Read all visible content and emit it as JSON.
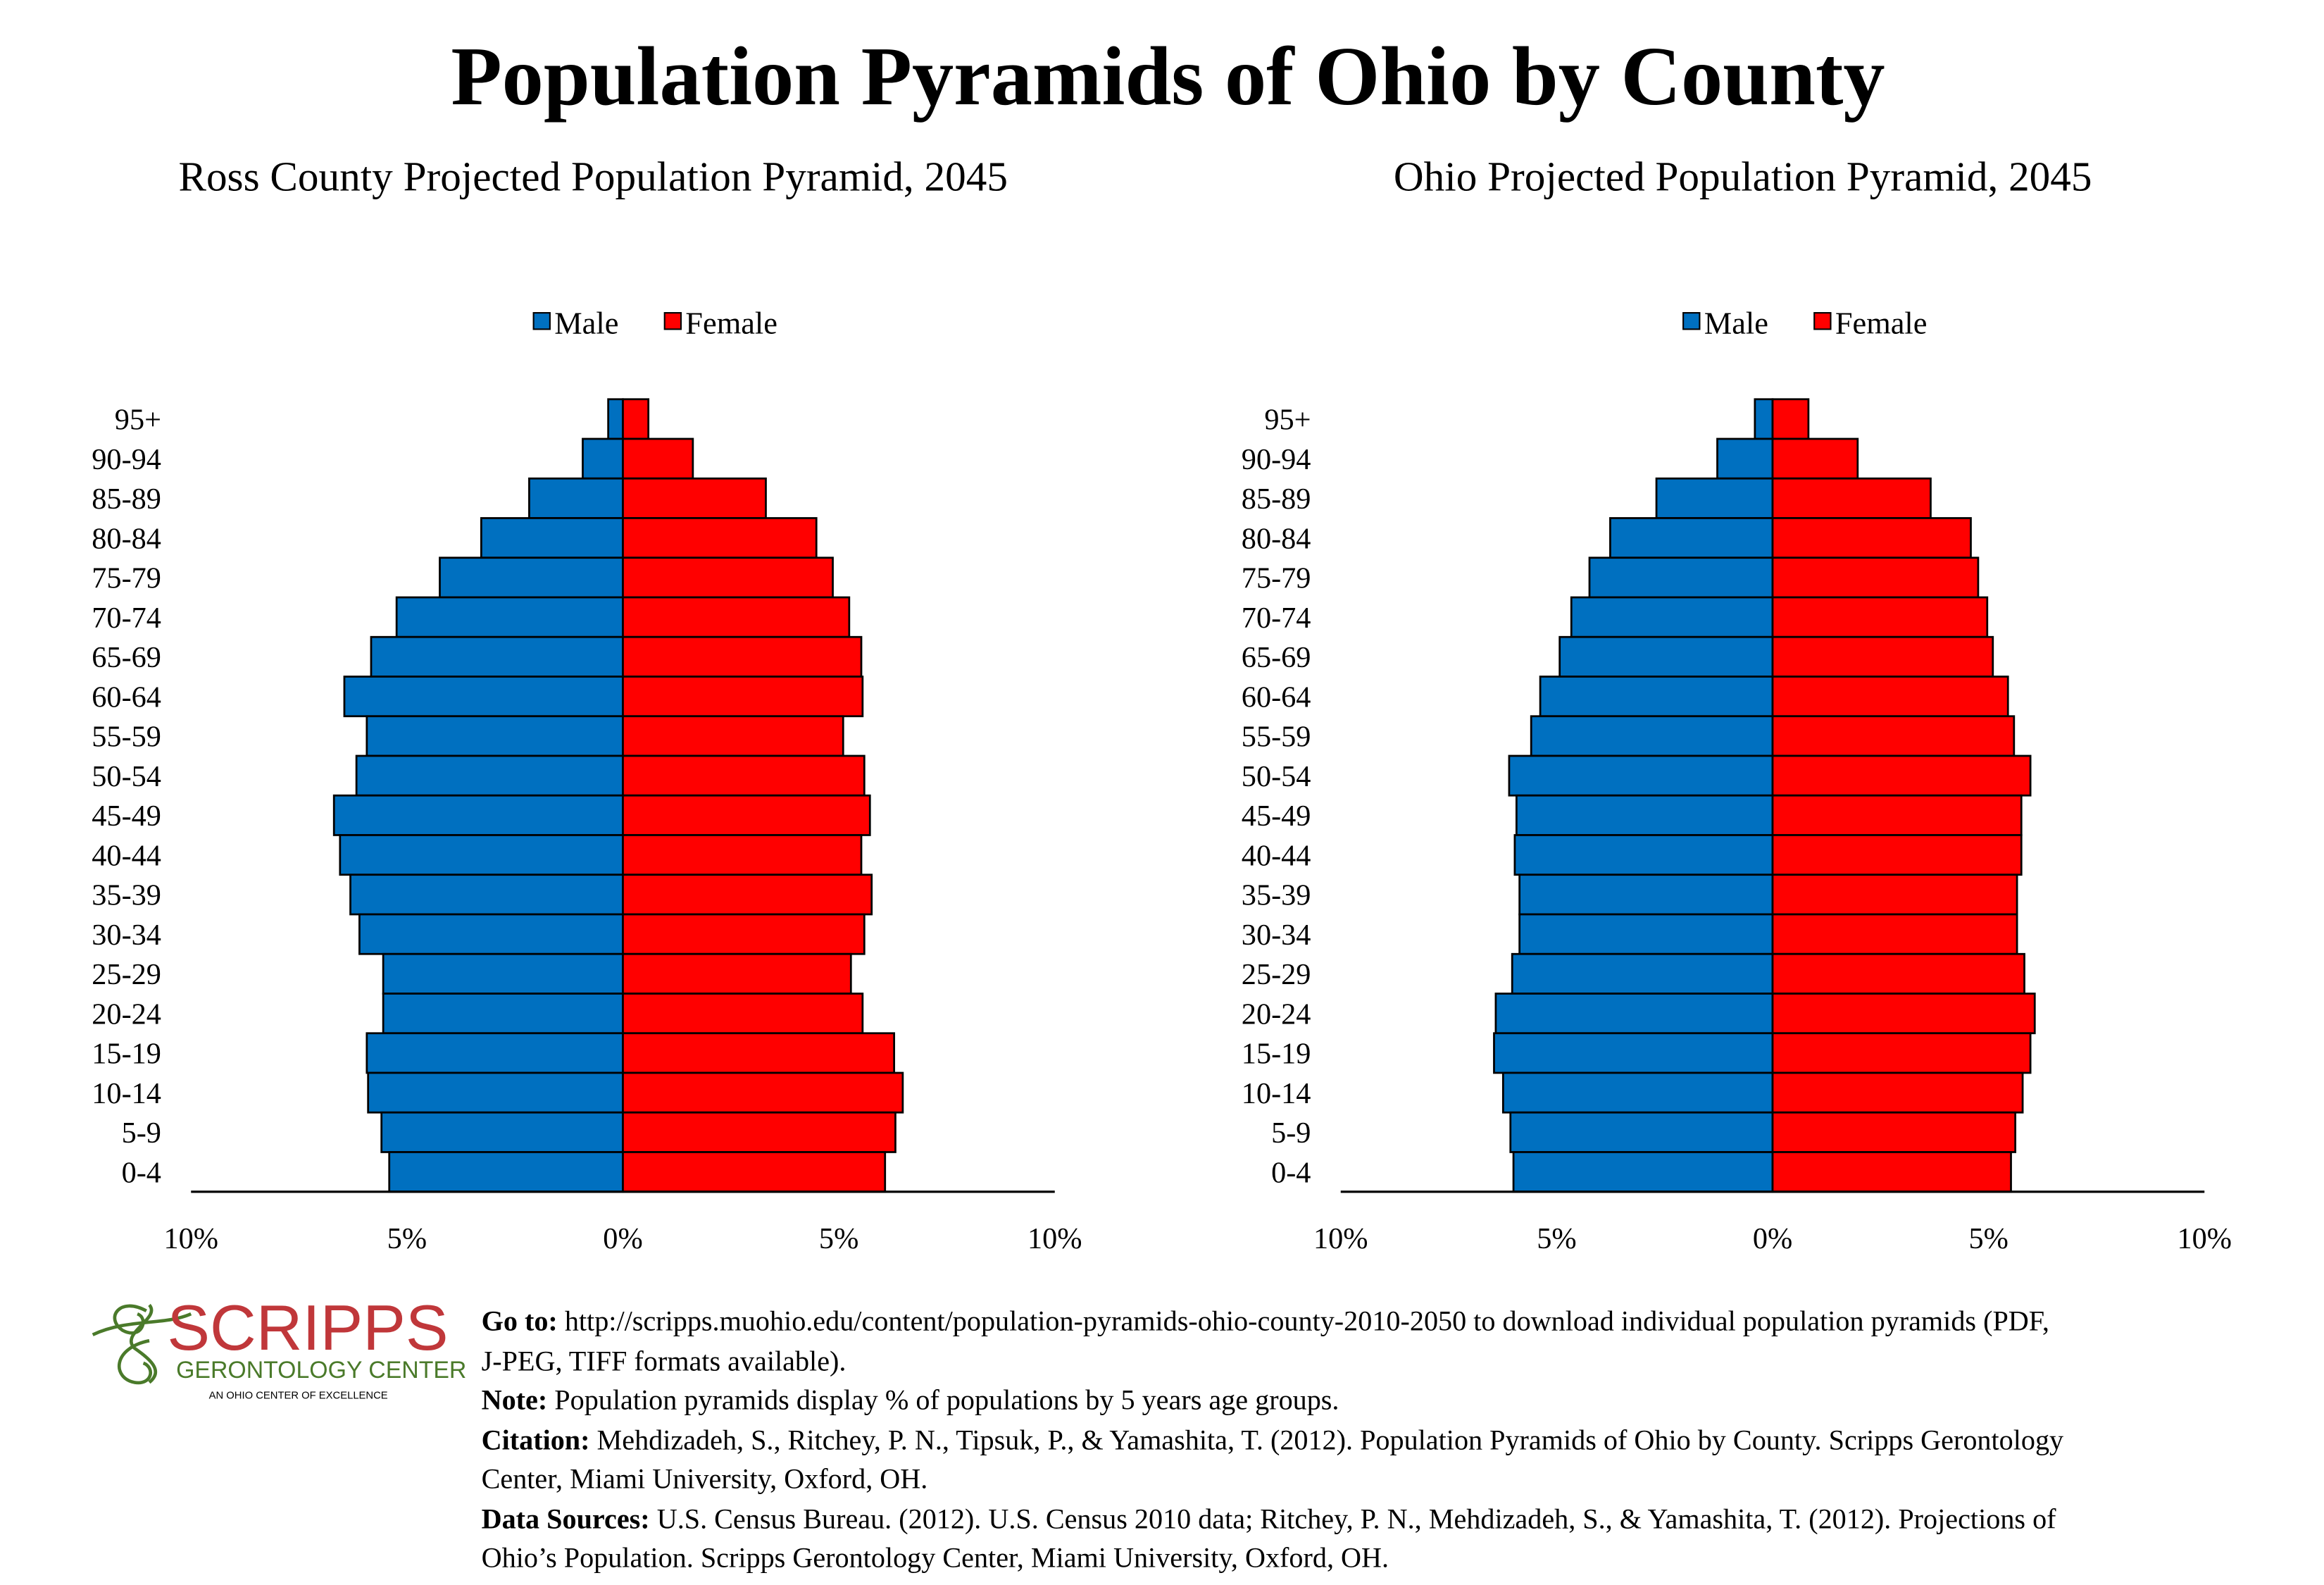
{
  "title": "Population Pyramids of Ohio by County",
  "colors": {
    "male": "#0070C0",
    "female": "#FF0000",
    "logo_red": "#C0373A",
    "logo_green": "#4A7A2A"
  },
  "chart_data": [
    {
      "type": "bar",
      "orientation": "horizontal-pyramid",
      "title": "Ross County Projected Population Pyramid, 2045",
      "categories": [
        "95+",
        "90-94",
        "85-89",
        "80-84",
        "75-79",
        "70-74",
        "65-69",
        "60-64",
        "55-59",
        "50-54",
        "45-49",
        "40-44",
        "35-39",
        "30-34",
        "25-29",
        "20-24",
        "15-19",
        "10-14",
        "5-9",
        "0-4"
      ],
      "series": [
        {
          "name": "Male",
          "values": [
            0.34,
            0.93,
            2.17,
            3.28,
            4.24,
            5.24,
            5.83,
            6.45,
            5.93,
            6.17,
            6.69,
            6.55,
            6.31,
            6.1,
            5.55,
            5.55,
            5.93,
            5.9,
            5.59,
            5.41
          ]
        },
        {
          "name": "Female",
          "values": [
            0.59,
            1.62,
            3.31,
            4.48,
            4.86,
            5.24,
            5.52,
            5.55,
            5.1,
            5.59,
            5.72,
            5.52,
            5.76,
            5.59,
            5.28,
            5.55,
            6.28,
            6.48,
            6.31,
            6.07
          ]
        }
      ],
      "xlim": [
        -10,
        10
      ],
      "xticks": [
        "10%",
        "5%",
        "0%",
        "5%",
        "10%"
      ],
      "legend": "top-center",
      "grid": false
    },
    {
      "type": "bar",
      "orientation": "horizontal-pyramid",
      "title": "Ohio Projected Population Pyramid, 2045",
      "categories": [
        "95+",
        "90-94",
        "85-89",
        "80-84",
        "75-79",
        "70-74",
        "65-69",
        "60-64",
        "55-59",
        "50-54",
        "45-49",
        "40-44",
        "35-39",
        "30-34",
        "25-29",
        "20-24",
        "15-19",
        "10-14",
        "5-9",
        "0-4"
      ],
      "series": [
        {
          "name": "Male",
          "values": [
            0.41,
            1.28,
            2.69,
            3.76,
            4.24,
            4.66,
            4.93,
            5.38,
            5.59,
            6.1,
            5.93,
            5.97,
            5.86,
            5.86,
            6.03,
            6.41,
            6.45,
            6.24,
            6.07,
            6.0
          ]
        },
        {
          "name": "Female",
          "values": [
            0.83,
            1.97,
            3.66,
            4.59,
            4.76,
            4.97,
            5.1,
            5.45,
            5.59,
            5.97,
            5.76,
            5.76,
            5.66,
            5.66,
            5.83,
            6.07,
            5.97,
            5.79,
            5.62,
            5.52
          ]
        }
      ],
      "xlim": [
        -10,
        10
      ],
      "xticks": [
        "10%",
        "5%",
        "0%",
        "5%",
        "10%"
      ],
      "legend": "top-center",
      "grid": false
    }
  ],
  "logo": {
    "name": "SCRIPPS",
    "sub": "GERONTOLOGY CENTER",
    "tagline": "AN OHIO CENTER OF EXCELLENCE"
  },
  "footer": {
    "goto_label": "Go to:",
    "goto_text_1": " http://scripps.muohio.edu/content/population-pyramids-ohio-county-2010-2050 to download individual population pyramids (PDF,",
    "goto_text_2": "J-PEG, TIFF formats available).",
    "note_label": "Note:",
    "note_text": " Population pyramids display % of populations by 5 years age groups.",
    "citation_label": "Citation:",
    "citation_text_1": " Mehdizadeh, S., Ritchey, P. N., Tipsuk, P., & Yamashita, T. (2012). Population Pyramids of Ohio by County. Scripps Gerontology",
    "citation_text_2": "Center, Miami University, Oxford, OH.",
    "sources_label": "Data Sources:",
    "sources_text_1": " U.S. Census Bureau. (2012). U.S. Census 2010 data; Ritchey, P. N., Mehdizadeh, S., & Yamashita, T. (2012). Projections of",
    "sources_text_2": "Ohio’s Population. Scripps Gerontology Center, Miami University, Oxford, OH."
  }
}
